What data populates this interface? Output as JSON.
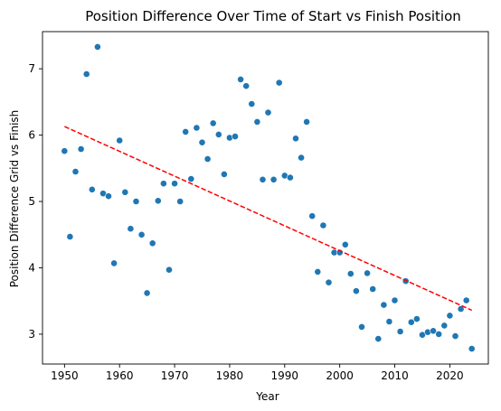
{
  "chart_data": {
    "type": "scatter",
    "title": "Position Difference Over Time of Start vs Finish Position",
    "xlabel": "Year",
    "ylabel": "Position Difference Grid vs Finish",
    "xlim": [
      1946,
      2027
    ],
    "ylim": [
      2.55,
      7.56
    ],
    "xticks": [
      1950,
      1960,
      1970,
      1980,
      1990,
      2000,
      2010,
      2020
    ],
    "yticks": [
      3,
      4,
      5,
      6,
      7
    ],
    "grid": false,
    "colors": {
      "points": "#1f77b4",
      "trendline": "#ff0000"
    },
    "points": [
      {
        "x": 1950,
        "y": 5.76
      },
      {
        "x": 1951,
        "y": 4.47
      },
      {
        "x": 1952,
        "y": 5.45
      },
      {
        "x": 1953,
        "y": 5.79
      },
      {
        "x": 1954,
        "y": 6.92
      },
      {
        "x": 1955,
        "y": 5.18
      },
      {
        "x": 1956,
        "y": 7.33
      },
      {
        "x": 1957,
        "y": 5.12
      },
      {
        "x": 1958,
        "y": 5.08
      },
      {
        "x": 1959,
        "y": 4.07
      },
      {
        "x": 1960,
        "y": 5.92
      },
      {
        "x": 1961,
        "y": 5.14
      },
      {
        "x": 1962,
        "y": 4.59
      },
      {
        "x": 1963,
        "y": 5.0
      },
      {
        "x": 1964,
        "y": 4.5
      },
      {
        "x": 1965,
        "y": 3.62
      },
      {
        "x": 1966,
        "y": 4.37
      },
      {
        "x": 1967,
        "y": 5.01
      },
      {
        "x": 1968,
        "y": 5.27
      },
      {
        "x": 1969,
        "y": 3.97
      },
      {
        "x": 1970,
        "y": 5.27
      },
      {
        "x": 1971,
        "y": 5.0
      },
      {
        "x": 1972,
        "y": 6.05
      },
      {
        "x": 1973,
        "y": 5.34
      },
      {
        "x": 1974,
        "y": 6.11
      },
      {
        "x": 1975,
        "y": 5.89
      },
      {
        "x": 1976,
        "y": 5.64
      },
      {
        "x": 1977,
        "y": 6.18
      },
      {
        "x": 1978,
        "y": 6.01
      },
      {
        "x": 1979,
        "y": 5.41
      },
      {
        "x": 1980,
        "y": 5.96
      },
      {
        "x": 1981,
        "y": 5.98
      },
      {
        "x": 1982,
        "y": 6.84
      },
      {
        "x": 1983,
        "y": 6.74
      },
      {
        "x": 1984,
        "y": 6.47
      },
      {
        "x": 1985,
        "y": 6.2
      },
      {
        "x": 1986,
        "y": 5.33
      },
      {
        "x": 1987,
        "y": 6.34
      },
      {
        "x": 1988,
        "y": 5.33
      },
      {
        "x": 1989,
        "y": 6.79
      },
      {
        "x": 1990,
        "y": 5.39
      },
      {
        "x": 1991,
        "y": 5.36
      },
      {
        "x": 1992,
        "y": 5.95
      },
      {
        "x": 1993,
        "y": 5.66
      },
      {
        "x": 1994,
        "y": 6.2
      },
      {
        "x": 1995,
        "y": 4.78
      },
      {
        "x": 1996,
        "y": 3.94
      },
      {
        "x": 1997,
        "y": 4.64
      },
      {
        "x": 1998,
        "y": 3.78
      },
      {
        "x": 1999,
        "y": 4.23
      },
      {
        "x": 2000,
        "y": 4.23
      },
      {
        "x": 2001,
        "y": 4.35
      },
      {
        "x": 2002,
        "y": 3.91
      },
      {
        "x": 2003,
        "y": 3.65
      },
      {
        "x": 2004,
        "y": 3.11
      },
      {
        "x": 2005,
        "y": 3.92
      },
      {
        "x": 2006,
        "y": 3.68
      },
      {
        "x": 2007,
        "y": 2.93
      },
      {
        "x": 2008,
        "y": 3.44
      },
      {
        "x": 2009,
        "y": 3.19
      },
      {
        "x": 2010,
        "y": 3.51
      },
      {
        "x": 2011,
        "y": 3.04
      },
      {
        "x": 2012,
        "y": 3.8
      },
      {
        "x": 2013,
        "y": 3.18
      },
      {
        "x": 2014,
        "y": 3.23
      },
      {
        "x": 2015,
        "y": 2.99
      },
      {
        "x": 2016,
        "y": 3.03
      },
      {
        "x": 2017,
        "y": 3.05
      },
      {
        "x": 2018,
        "y": 3.0
      },
      {
        "x": 2019,
        "y": 3.13
      },
      {
        "x": 2020,
        "y": 3.28
      },
      {
        "x": 2021,
        "y": 2.97
      },
      {
        "x": 2022,
        "y": 3.38
      },
      {
        "x": 2023,
        "y": 3.51
      },
      {
        "x": 2024,
        "y": 2.78
      }
    ],
    "trendline": {
      "x": [
        1950,
        2024
      ],
      "y": [
        6.13,
        3.36
      ]
    }
  }
}
